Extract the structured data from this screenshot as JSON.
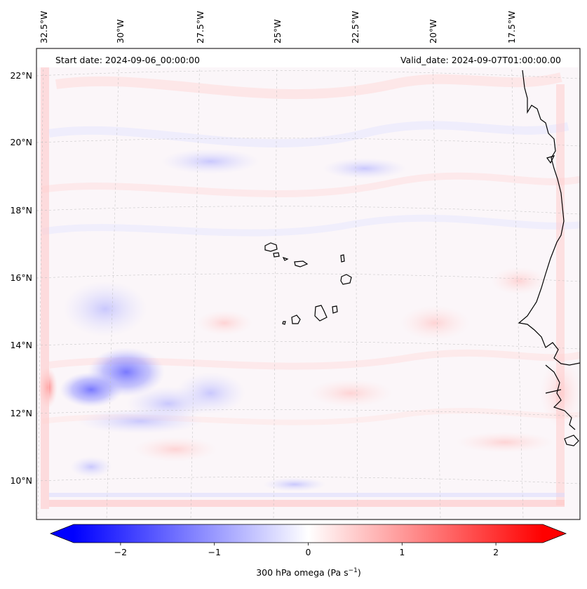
{
  "header": {
    "start_date": "Start date: 2024-09-06_00:00:00",
    "valid_date": "Valid_date: 2024-09-07T01:00:00.00"
  },
  "longitude_labels": [
    "32.5°W",
    "30°W",
    "27.5°W",
    "25°W",
    "22.5°W",
    "20°W",
    "17.5°W"
  ],
  "latitude_labels": [
    "22°N",
    "20°N",
    "18°N",
    "16°N",
    "14°N",
    "12°N",
    "10°N"
  ],
  "colorbar": {
    "ticks": [
      "−2",
      "−1",
      "0",
      "1",
      "2"
    ],
    "tick_values": [
      -2,
      -1,
      0,
      1,
      2
    ],
    "range": [
      -2.5,
      2.5
    ],
    "label": "300 hPa omega (Pa s",
    "label_sup": "−1",
    "label_end": ")",
    "negative_color": "#0000ff",
    "zero_color": "#ffffff",
    "positive_color": "#ff0000"
  }
}
